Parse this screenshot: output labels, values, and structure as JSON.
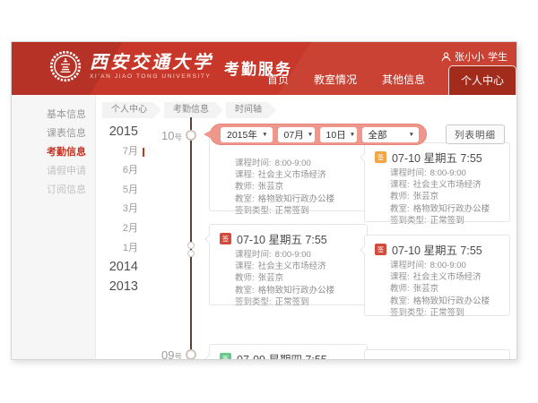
{
  "header": {
    "university_cn": "西安交通大学",
    "university_en": "XI'AN JIAO TONG UNIVERSITY",
    "app_title": "考勤服务",
    "user": {
      "name": "张小小",
      "role": "学生"
    },
    "nav": [
      {
        "id": "home",
        "label": "首页",
        "active": false
      },
      {
        "id": "classroom-status",
        "label": "教室情况",
        "active": false
      },
      {
        "id": "other-info",
        "label": "其他信息",
        "active": false
      },
      {
        "id": "personal-center",
        "label": "个人中心",
        "active": true
      }
    ]
  },
  "sidebar": {
    "items": [
      {
        "id": "basic-info",
        "label": "基本信息",
        "state": "normal"
      },
      {
        "id": "timetable-info",
        "label": "课表信息",
        "state": "normal"
      },
      {
        "id": "attendance-info",
        "label": "考勤信息",
        "state": "active"
      },
      {
        "id": "leave-request",
        "label": "请假申请",
        "state": "muted"
      },
      {
        "id": "subscription-info",
        "label": "订阅信息",
        "state": "muted"
      }
    ]
  },
  "breadcrumb": {
    "items": [
      {
        "id": "personal-center",
        "label": "个人中心"
      },
      {
        "id": "attendance-info",
        "label": "考勤信息"
      },
      {
        "id": "timeline",
        "label": "时间轴"
      }
    ]
  },
  "filters": {
    "year": "2015年",
    "month": "07月",
    "day": "10日",
    "scope": "全部",
    "detail_button": "列表明细"
  },
  "timeline": {
    "scale": [
      {
        "label": "2015",
        "kind": "year"
      },
      {
        "label": "7月",
        "kind": "month",
        "active": true
      },
      {
        "label": "6月",
        "kind": "month"
      },
      {
        "label": "5月",
        "kind": "month"
      },
      {
        "label": "3月",
        "kind": "month"
      },
      {
        "label": "2月",
        "kind": "month"
      },
      {
        "label": "1月",
        "kind": "month"
      },
      {
        "label": "2014",
        "kind": "year"
      },
      {
        "label": "2013",
        "kind": "year"
      }
    ],
    "day_markers": [
      {
        "num": "10",
        "suffix": "号"
      },
      {
        "num": "09",
        "suffix": "号"
      }
    ]
  },
  "cards": [
    {
      "header": "",
      "icon": "",
      "fields": [
        {
          "label": "课程时间:",
          "value": "8:00-9:00"
        },
        {
          "label": "课程:",
          "value": "社会主义市场经济"
        },
        {
          "label": "教师:",
          "value": "张芸京"
        },
        {
          "label": "教室:",
          "value": "格物致知行政办公楼"
        },
        {
          "label": "签到类型:",
          "value": "正常签到"
        }
      ]
    },
    {
      "header": "07-10 星期五 7:55",
      "icon": "orange",
      "fields": [
        {
          "label": "课程时间:",
          "value": "8:00-9:00"
        },
        {
          "label": "课程:",
          "value": "社会主义市场经济"
        },
        {
          "label": "教师:",
          "value": "张芸京"
        },
        {
          "label": "教室:",
          "value": "格物致知行政办公楼"
        },
        {
          "label": "签到类型:",
          "value": "正常签到"
        }
      ]
    },
    {
      "header": "07-10 星期五 7:55",
      "icon": "red",
      "fields": [
        {
          "label": "课程时间:",
          "value": "8:00-9:00"
        },
        {
          "label": "课程:",
          "value": "社会主义市场经济"
        },
        {
          "label": "教师:",
          "value": "张芸京"
        },
        {
          "label": "教室:",
          "value": "格物致知行政办公楼"
        },
        {
          "label": "签到类型:",
          "value": "正常签到"
        }
      ]
    },
    {
      "header": "07-10 星期五 7:55",
      "icon": "red",
      "fields": [
        {
          "label": "课程时间:",
          "value": "8:00-9:00"
        },
        {
          "label": "课程:",
          "value": "社会主义市场经济"
        },
        {
          "label": "教师:",
          "value": "张芸京"
        },
        {
          "label": "教室:",
          "value": "格物致知行政办公楼"
        },
        {
          "label": "签到类型:",
          "value": "正常签到"
        }
      ]
    },
    {
      "header": "07-09 星期四 7:55",
      "icon": "green",
      "fields": []
    },
    {
      "header": "",
      "icon": "",
      "fields": []
    }
  ],
  "colors": {
    "header_red": "#c8382a",
    "active_tab_red": "#a32b1c",
    "sidebar_active_red": "#c23726",
    "filter_bubble": "#ef978d",
    "icon_orange": "#f0a644",
    "icon_red": "#d24b3c",
    "icon_green": "#68c98b",
    "timeline_line": "#5a433c"
  }
}
